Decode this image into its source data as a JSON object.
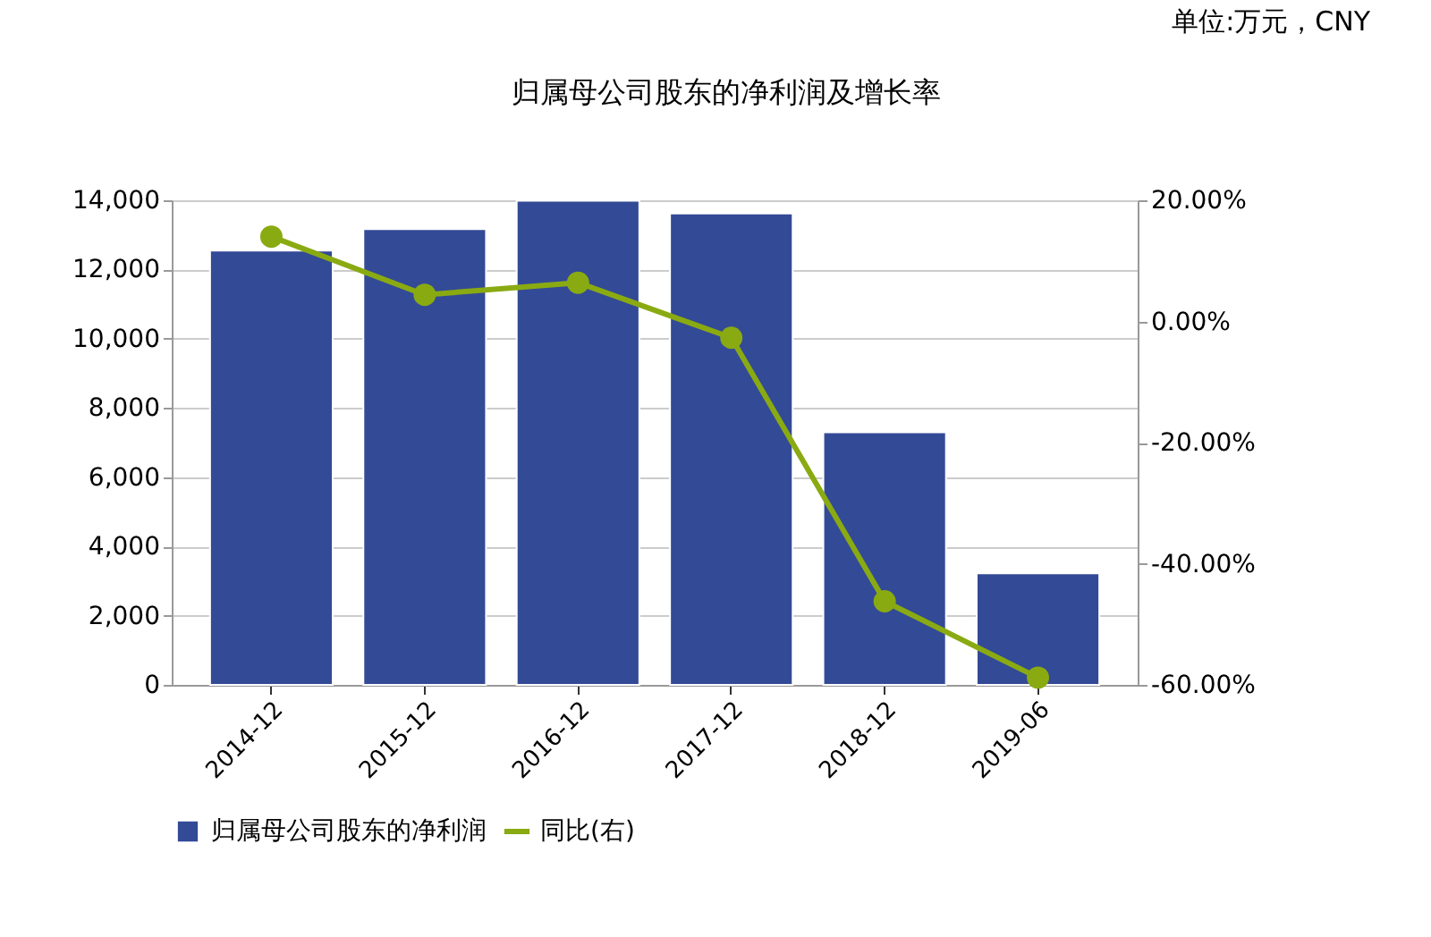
{
  "chart_data": {
    "type": "bar",
    "title": "归属母公司股东的净利润及增长率",
    "annotations": [
      "单位:万元，CNY"
    ],
    "categories": [
      "2014-12",
      "2015-12",
      "2016-12",
      "2017-12",
      "2018-12",
      "2019-06"
    ],
    "series": [
      {
        "name": "归属母公司股东的净利润",
        "color": "#334a96",
        "values": [
          12550,
          13170,
          13990,
          13620,
          7300,
          3220
        ]
      },
      {
        "name": "同比(右)",
        "type": "line",
        "axis": "y2",
        "color": "#8aaa12",
        "marker": "circle",
        "values": [
          14.0,
          4.4,
          6.4,
          -2.7,
          -46.2,
          -58.8
        ]
      }
    ],
    "ylim": [
      0,
      14000
    ],
    "yticks": [
      0,
      {
        "value": 2000,
        "label": "2,000"
      },
      {
        "value": 4000,
        "label": "4,000"
      },
      {
        "value": 6000,
        "label": "6,000"
      },
      {
        "value": 8000,
        "label": "8,000"
      },
      {
        "value": 10000,
        "label": "10,000"
      },
      {
        "value": 12000,
        "label": "12,000"
      },
      {
        "value": 14000,
        "label": "14,000"
      }
    ],
    "y2lim": [
      -60,
      20
    ],
    "y2ticks": [
      {
        "value": -60,
        "label": "-60.00%"
      },
      {
        "value": -40,
        "label": "-40.00%"
      },
      {
        "value": -20,
        "label": "-20.00%"
      },
      {
        "value": 0,
        "label": "0.00%"
      },
      {
        "value": 20,
        "label": "20.00%"
      }
    ],
    "grid": "y",
    "legend": "bottom"
  }
}
